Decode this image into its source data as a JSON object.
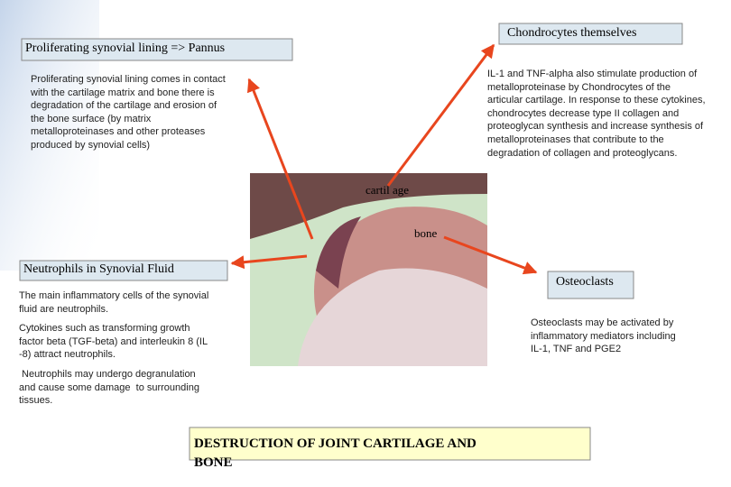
{
  "pannus": {
    "title": "Proliferating synovial lining => Pannus",
    "text": [
      "Proliferating synovial lining comes in contact",
      "with the cartilage matrix and bone there is",
      "degradation of the cartilage and erosion of",
      "the bone surface (by matrix",
      "metalloproteinases and other proteases",
      "produced by synovial cells)"
    ]
  },
  "chondrocytes": {
    "title": "Chondrocytes themselves",
    "text": [
      "IL-1 and TNF-alpha also stimulate production of",
      "metalloproteinase by Chondrocytes of the",
      "articular cartilage. In response to these cytokines,",
      "chondrocytes decrease type II collagen and",
      "proteoglycan synthesis and increase synthesis of",
      "metalloproteinases that contribute to the",
      "degradation of collagen and proteoglycans."
    ]
  },
  "image_labels": {
    "cartilage": "cartil age",
    "bone": "bone"
  },
  "neutrophils": {
    "title": "Neutrophils in Synovial Fluid",
    "paragraphs": [
      [
        "The main inflammatory cells of the synovial",
        "fluid are neutrophils."
      ],
      [
        "Cytokines such as transforming growth",
        "factor beta (TGF-beta) and interleukin 8 (IL",
        "-8) attract neutrophils."
      ],
      [
        " Neutrophils may undergo degranulation",
        "and cause some damage  to surrounding",
        "tissues."
      ]
    ]
  },
  "osteoclasts": {
    "title": "Osteoclasts",
    "text": [
      "Osteoclasts may be activated by",
      "inflammatory mediators including",
      "IL-1, TNF and PGE2"
    ]
  },
  "footer": {
    "lines": [
      "DESTRUCTION OF JOINT CARTILAGE AND",
      "BONE"
    ]
  }
}
